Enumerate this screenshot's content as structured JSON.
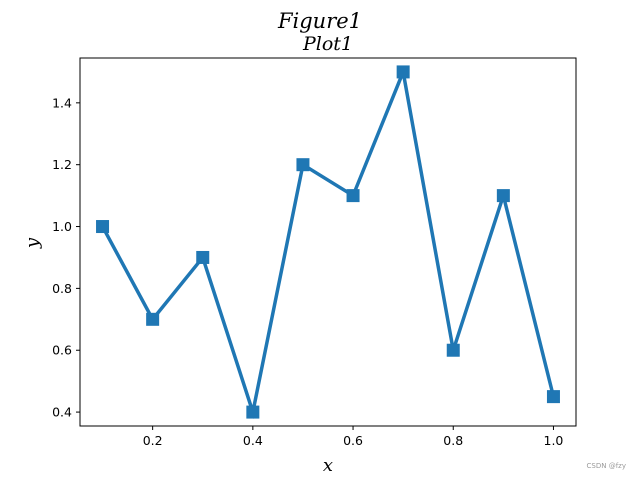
{
  "figure": {
    "suptitle": "Figure1",
    "watermark": "CSDN @fzy"
  },
  "chart_data": {
    "type": "line",
    "title": "Plot1",
    "xlabel": "x",
    "ylabel": "y",
    "x": [
      0.1,
      0.2,
      0.3,
      0.4,
      0.5,
      0.6,
      0.7,
      0.8,
      0.9,
      1.0
    ],
    "series": [
      {
        "values": [
          1.0,
          0.7,
          0.9,
          0.4,
          1.2,
          1.1,
          1.5,
          0.6,
          1.1,
          0.45
        ],
        "color": "#1f77b4",
        "marker": "square"
      }
    ],
    "xlim": [
      0.055,
      1.045
    ],
    "ylim": [
      0.355,
      1.545
    ],
    "xticks": [
      0.2,
      0.4,
      0.6,
      0.8,
      1.0
    ],
    "xtick_labels": [
      "0.2",
      "0.4",
      "0.6",
      "0.8",
      "1.0"
    ],
    "yticks": [
      0.4,
      0.6,
      0.8,
      1.0,
      1.2,
      1.4
    ],
    "ytick_labels": [
      "0.4",
      "0.6",
      "0.8",
      "1.0",
      "1.2",
      "1.4"
    ],
    "grid": false,
    "legend": "none"
  }
}
